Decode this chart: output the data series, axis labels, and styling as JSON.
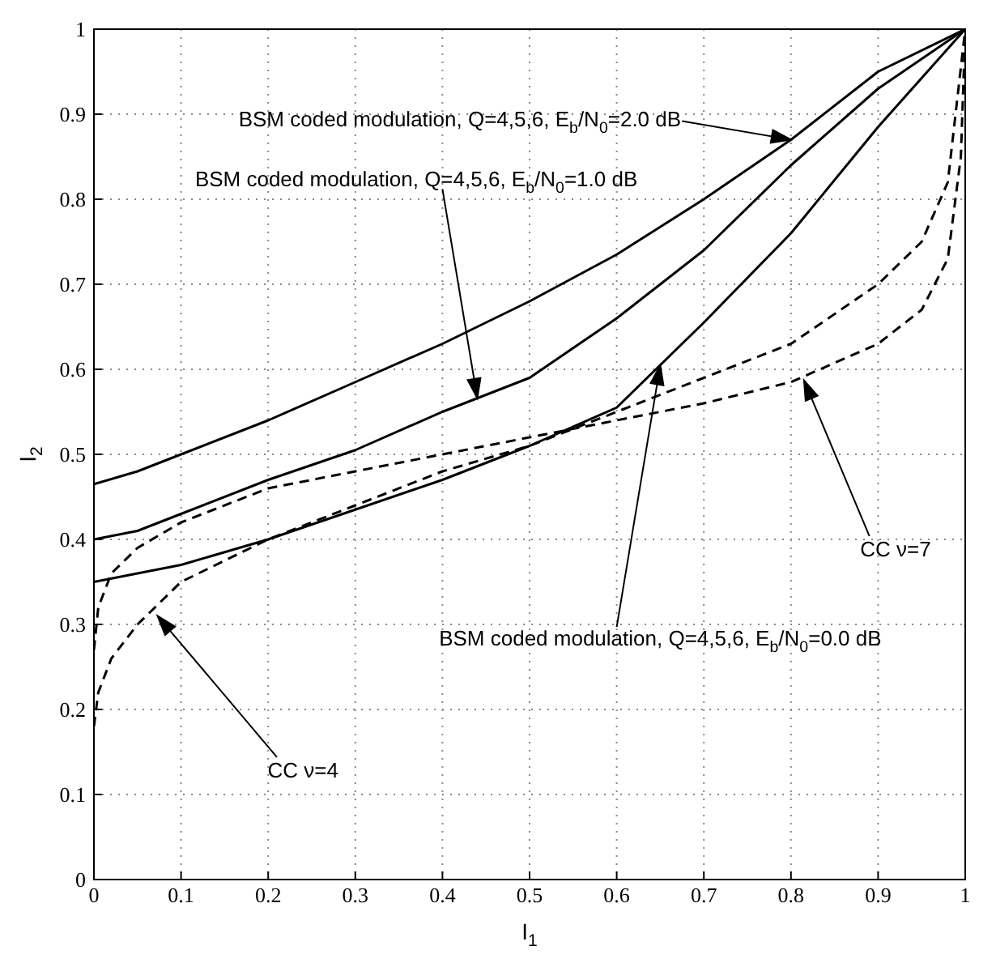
{
  "chart_data": {
    "type": "line",
    "xlabel": "I$_{1}$",
    "ylabel": "I$_{2}$",
    "xlim": [
      0,
      1
    ],
    "ylim": [
      0,
      1
    ],
    "xticks": [
      0,
      0.1,
      0.2,
      0.3,
      0.4,
      0.5,
      0.6,
      0.7,
      0.8,
      0.9,
      1
    ],
    "yticks": [
      0,
      0.1,
      0.2,
      0.3,
      0.4,
      0.5,
      0.6,
      0.7,
      0.8,
      0.9,
      1
    ],
    "grid": true,
    "marker": "none",
    "series": [
      {
        "color": "#000000",
        "line_style": "solid",
        "x": [
          0,
          0.05,
          0.1,
          0.2,
          0.3,
          0.4,
          0.5,
          0.6,
          0.7,
          0.8,
          0.9,
          1
        ],
        "values": [
          0.465,
          0.48,
          0.5,
          0.54,
          0.585,
          0.63,
          0.68,
          0.735,
          0.8,
          0.87,
          0.95,
          1
        ]
      },
      {
        "color": "#000000",
        "line_style": "solid",
        "x": [
          0,
          0.05,
          0.1,
          0.2,
          0.3,
          0.4,
          0.5,
          0.6,
          0.7,
          0.8,
          0.9,
          1
        ],
        "values": [
          0.4,
          0.41,
          0.43,
          0.47,
          0.505,
          0.55,
          0.59,
          0.66,
          0.74,
          0.84,
          0.93,
          1
        ]
      },
      {
        "color": "#000000",
        "line_style": "solid",
        "x": [
          0,
          0.05,
          0.1,
          0.2,
          0.3,
          0.4,
          0.5,
          0.6,
          0.7,
          0.8,
          0.9,
          1
        ],
        "values": [
          0.35,
          0.36,
          0.37,
          0.4,
          0.435,
          0.47,
          0.51,
          0.555,
          0.655,
          0.76,
          0.885,
          1
        ]
      },
      {
        "color": "#000000",
        "line_style": "dashed",
        "x": [
          0,
          0.005,
          0.02,
          0.05,
          0.1,
          0.2,
          0.3,
          0.4,
          0.5,
          0.6,
          0.7,
          0.8,
          0.9,
          0.95,
          0.98,
          1
        ],
        "values": [
          0.18,
          0.22,
          0.26,
          0.3,
          0.35,
          0.4,
          0.44,
          0.48,
          0.51,
          0.55,
          0.59,
          0.63,
          0.7,
          0.75,
          0.82,
          1
        ]
      },
      {
        "color": "#000000",
        "line_style": "dashed",
        "x": [
          0,
          0.005,
          0.02,
          0.05,
          0.1,
          0.2,
          0.3,
          0.4,
          0.5,
          0.6,
          0.7,
          0.8,
          0.9,
          0.95,
          0.98,
          0.995,
          1
        ],
        "values": [
          0.27,
          0.32,
          0.36,
          0.39,
          0.42,
          0.46,
          0.48,
          0.5,
          0.52,
          0.54,
          0.56,
          0.585,
          0.63,
          0.67,
          0.73,
          0.85,
          1
        ]
      }
    ],
    "annotations": [
      "BSM coded modulation, Q=4,5,6, E$_{b}$/N$_{0}$=2.0 dB",
      "BSM coded modulation, Q=4,5,6, E$_{b}$/N$_{0}$=1.0 dB",
      "BSM coded modulation, Q=4,5,6, E$_{b}$/N$_{0}$=0.0 dB",
      "CC ν=7",
      "CC ν=4"
    ]
  }
}
